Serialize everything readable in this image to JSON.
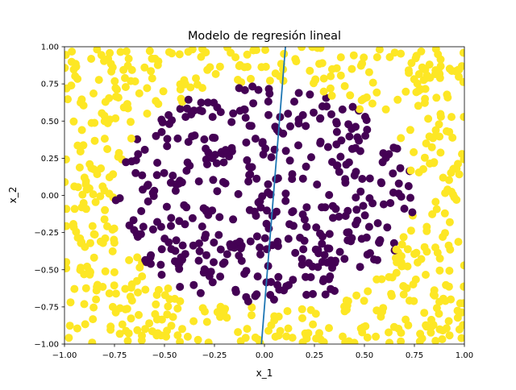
{
  "chart_data": {
    "type": "scatter",
    "title": "Modelo de regresión lineal",
    "xlabel": "x_1",
    "ylabel": "x_2",
    "xlim": [
      -1.0,
      1.0
    ],
    "ylim": [
      -1.0,
      1.0
    ],
    "xticks": [
      -1.0,
      -0.75,
      -0.5,
      -0.25,
      0.0,
      0.25,
      0.5,
      0.75,
      1.0
    ],
    "yticks": [
      -1.0,
      -0.75,
      -0.5,
      -0.25,
      0.0,
      0.25,
      0.5,
      0.75,
      1.0
    ],
    "xtick_labels": [
      "−1.00",
      "−0.75",
      "−0.50",
      "−0.25",
      "0.00",
      "0.25",
      "0.50",
      "0.75",
      "1.00"
    ],
    "ytick_labels": [
      "−1.00",
      "−0.75",
      "−0.50",
      "−0.25",
      "0.00",
      "0.25",
      "0.50",
      "0.75",
      "1.00"
    ],
    "grid": false,
    "legend": "none",
    "classes": [
      {
        "label": 0,
        "color": "#440154",
        "region": "inside circle of radius ~0.75 centered at origin"
      },
      {
        "label": 1,
        "color": "#fde725",
        "region": "outside circle of radius ~0.75"
      }
    ],
    "class_boundary_radius": 0.75,
    "n_points": 1000,
    "regression_line": {
      "color": "#1f77b4",
      "points": [
        [
          -0.015,
          -1.0
        ],
        [
          0.105,
          1.0
        ]
      ]
    }
  }
}
